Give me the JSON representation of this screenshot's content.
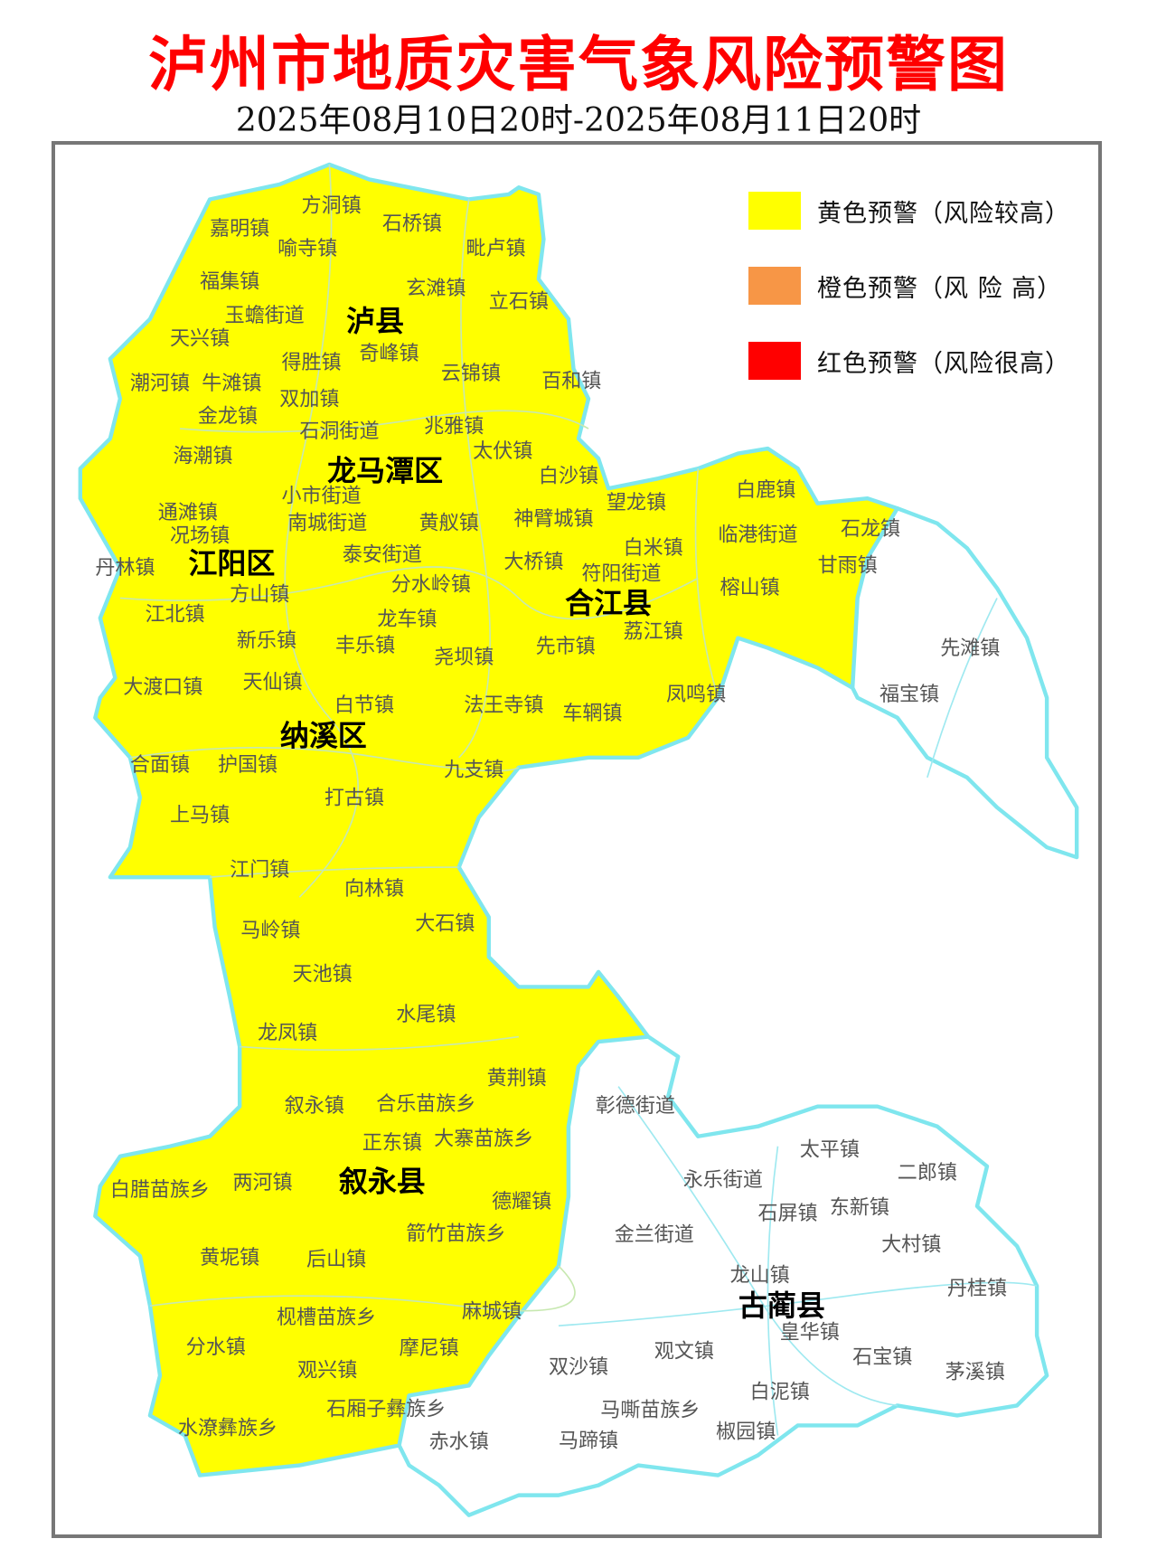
{
  "title": "泸州市地质灾害气象风险预警图",
  "subtitle": "2025年08月10日20时-2025年08月11日20时",
  "colors": {
    "title": "#ff0000",
    "yellow": "#ffff00",
    "orange": "#f79646",
    "red": "#ff0000",
    "boundary": "#7fe6ee",
    "unwarned": "#ffffff"
  },
  "legend": [
    {
      "label": "黄色预警（风险较高）",
      "color": "#ffff00"
    },
    {
      "label": "橙色预警（风 险 高）",
      "color": "#f79646"
    },
    {
      "label": "红色预警（风险很高）",
      "color": "#ff0000"
    }
  ],
  "districts": [
    "泸县",
    "龙马潭区",
    "江阳区",
    "合江县",
    "纳溪区",
    "叙永县",
    "古蔺县"
  ],
  "towns": [
    "方洞镇",
    "嘉明镇",
    "石桥镇",
    "喻寺镇",
    "毗卢镇",
    "福集镇",
    "玄滩镇",
    "立石镇",
    "玉蟾街道",
    "天兴镇",
    "奇峰镇",
    "得胜镇",
    "云锦镇",
    "百和镇",
    "潮河镇",
    "牛滩镇",
    "双加镇",
    "金龙镇",
    "石洞街道",
    "兆雅镇",
    "太伏镇",
    "海潮镇",
    "白沙镇",
    "小市街道",
    "望龙镇",
    "白鹿镇",
    "通滩镇",
    "南城街道",
    "黄舣镇",
    "神臂城镇",
    "临港街道",
    "石龙镇",
    "况场镇",
    "泰安街道",
    "白米镇",
    "丹林镇",
    "大桥镇",
    "符阳街道",
    "甘雨镇",
    "分水岭镇",
    "方山镇",
    "榕山镇",
    "江北镇",
    "龙车镇",
    "荔江镇",
    "新乐镇",
    "丰乐镇",
    "先市镇",
    "尧坝镇",
    "先滩镇",
    "天仙镇",
    "大渡口镇",
    "福宝镇",
    "凤鸣镇",
    "白节镇",
    "法王寺镇",
    "车辋镇",
    "合面镇",
    "护国镇",
    "九支镇",
    "打古镇",
    "上马镇",
    "江门镇",
    "向林镇",
    "大石镇",
    "马岭镇",
    "天池镇",
    "水尾镇",
    "龙凤镇",
    "黄荆镇",
    "彰德街道",
    "叙永镇",
    "合乐苗族乡",
    "正东镇",
    "大寨苗族乡",
    "太平镇",
    "二郎镇",
    "永乐街道",
    "白腊苗族乡",
    "两河镇",
    "德耀镇",
    "石屏镇",
    "东新镇",
    "金兰街道",
    "箭竹苗族乡",
    "大村镇",
    "黄坭镇",
    "后山镇",
    "龙山镇",
    "丹桂镇",
    "麻城镇",
    "枧槽苗族乡",
    "皇华镇",
    "分水镇",
    "双沙镇",
    "观文镇",
    "摩尼镇",
    "石宝镇",
    "观兴镇",
    "茅溪镇",
    "白泥镇",
    "石厢子彝族乡",
    "马嘶苗族乡",
    "水潦彝族乡",
    "赤水镇",
    "马蹄镇",
    "椒园镇"
  ],
  "warning_areas": {
    "yellow": [
      "泸县",
      "龙马潭区",
      "江阳区",
      "合江县",
      "纳溪区",
      "叙永县"
    ],
    "none": [
      "古蔺县",
      "先滩镇",
      "福宝镇"
    ]
  }
}
